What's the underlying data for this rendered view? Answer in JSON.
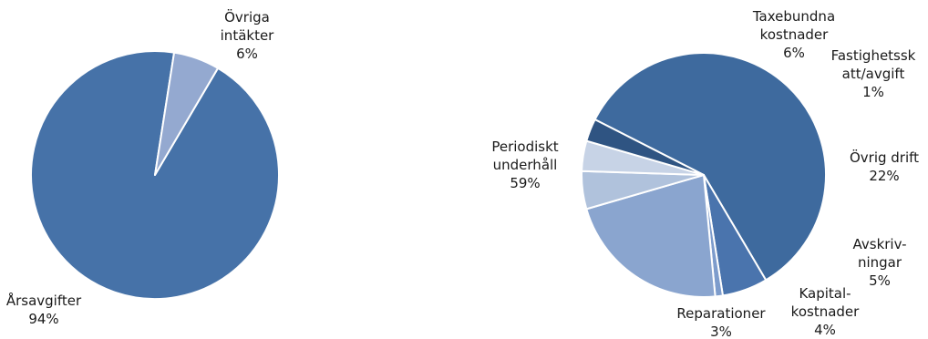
{
  "chart_data": [
    {
      "type": "pie",
      "title": "",
      "colors": [
        "#4672a8",
        "#94a9d0"
      ],
      "slices": [
        {
          "label": [
            "Årsavgifter"
          ],
          "percent_label": "94%",
          "value": 94
        },
        {
          "label": [
            "Övriga",
            "intäkter"
          ],
          "percent_label": "6%",
          "value": 6
        }
      ]
    },
    {
      "type": "pie",
      "title": "",
      "colors": [
        "#3e6a9e",
        "#4a74ad",
        "#7d9ccc",
        "#8aa5cf",
        "#b0c2dc",
        "#c7d3e6",
        "#2f5482"
      ],
      "slices": [
        {
          "label": [
            "Periodiskt",
            "underhåll"
          ],
          "percent_label": "59%",
          "value": 59
        },
        {
          "label": [
            "Taxebundna",
            "kostnader"
          ],
          "percent_label": "6%",
          "value": 6
        },
        {
          "label": [
            "Fastighetssk",
            "att/avgift"
          ],
          "percent_label": "1%",
          "value": 1
        },
        {
          "label": [
            "Övrig drift"
          ],
          "percent_label": "22%",
          "value": 22
        },
        {
          "label": [
            "Avskriv-",
            "ningar"
          ],
          "percent_label": "5%",
          "value": 5
        },
        {
          "label": [
            "Kapital-",
            "kostnader"
          ],
          "percent_label": "4%",
          "value": 4
        },
        {
          "label": [
            "Reparationer"
          ],
          "percent_label": "3%",
          "value": 3
        }
      ]
    }
  ]
}
